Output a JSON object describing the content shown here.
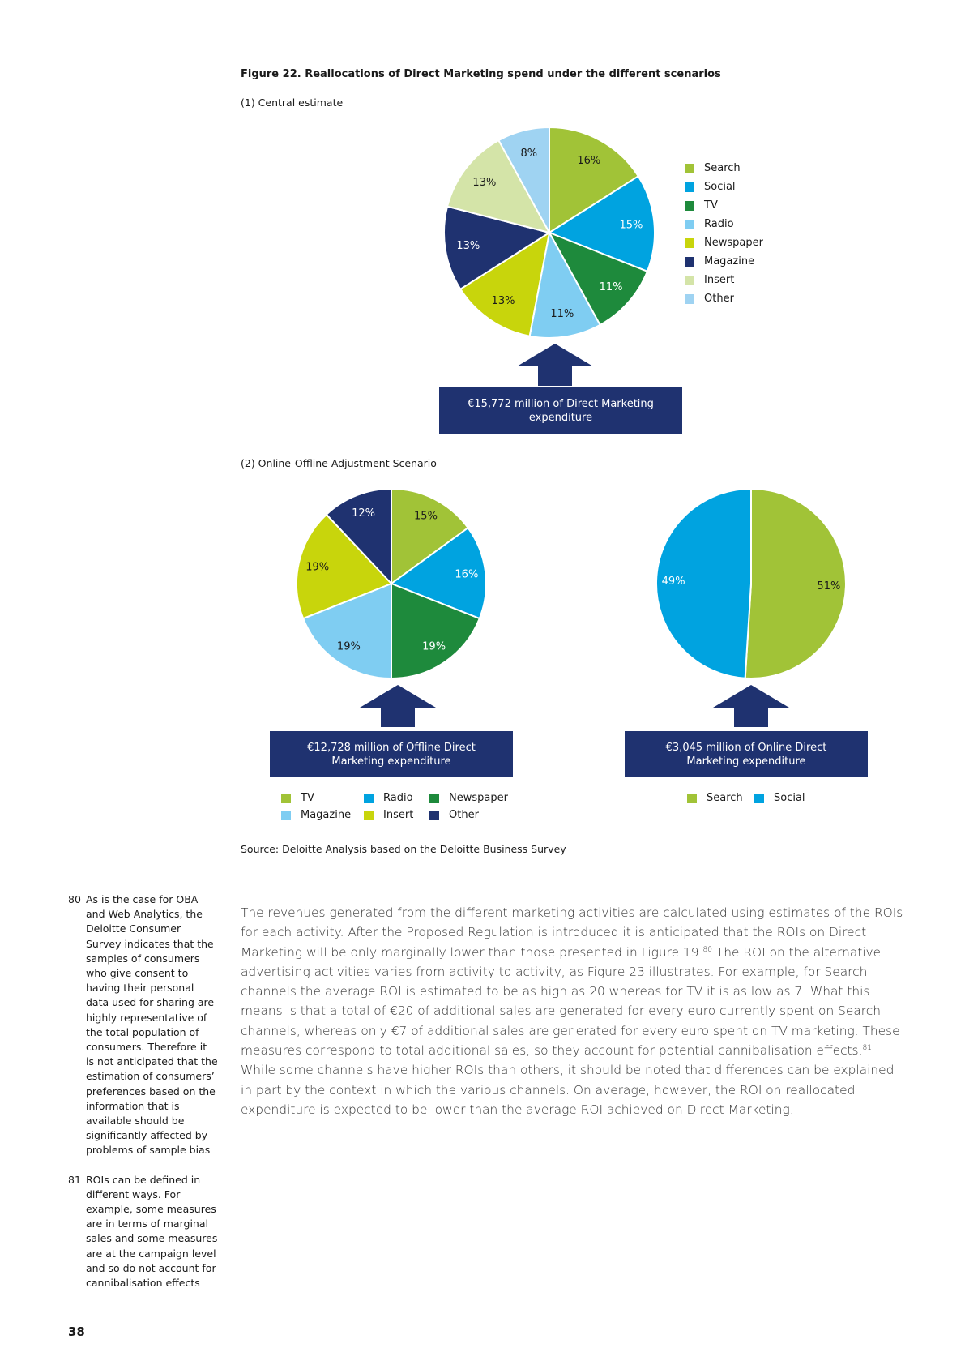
{
  "figure": {
    "title": "Figure 22. Reallocations of Direct Marketing spend under the different scenarios",
    "subtitle_1": "(1) Central estimate",
    "subtitle_2": "(2) Online-Offline Adjustment Scenario",
    "source": "Source: Deloitte Analysis based on the Deloitte Business Survey"
  },
  "colors": {
    "Search": "#a1c337",
    "Social": "#00a3e0",
    "TV": "#1e8a3c",
    "Radio": "#7fcdf2",
    "Newspaper": "#c8d50c",
    "Magazine": "#1f3270",
    "Insert": "#d4e4a8",
    "Other": "#9fd3f2",
    "Other_dark": "#1f3270",
    "callout_bg": "#1f3270"
  },
  "chart_data": [
    {
      "type": "pie",
      "labels": [
        "Search",
        "Social",
        "TV",
        "Radio",
        "Newspaper",
        "Magazine",
        "Insert",
        "Other"
      ],
      "values": [
        16,
        15,
        11,
        11,
        13,
        13,
        13,
        8
      ],
      "value_labels": [
        "16%",
        "15%",
        "11%",
        "11%",
        "13%",
        "13%",
        "13%",
        "8%"
      ],
      "callout": "€15,772 million of Direct Marketing expenditure",
      "legend": [
        "Search",
        "Social",
        "TV",
        "Radio",
        "Newspaper",
        "Magazine",
        "Insert",
        "Other"
      ],
      "legend_placement": "right"
    },
    {
      "type": "pie",
      "labels": [
        "TV",
        "Radio",
        "Newspaper",
        "Magazine",
        "Insert",
        "Other"
      ],
      "values": [
        15,
        16,
        19,
        19,
        19,
        12
      ],
      "value_labels": [
        "15%",
        "16%",
        "19%",
        "19%",
        "19%",
        "12%"
      ],
      "callout": "€12,728 million of Offline Direct Marketing expenditure",
      "legend": [
        "TV",
        "Radio",
        "Newspaper",
        "Magazine",
        "Insert",
        "Other"
      ],
      "legend_placement": "bottom"
    },
    {
      "type": "pie",
      "labels": [
        "Search",
        "Social"
      ],
      "values": [
        51,
        49
      ],
      "value_labels": [
        "51%",
        "49%"
      ],
      "callout": "€3,045 million of Online Direct Marketing expenditure",
      "legend": [
        "Search",
        "Social"
      ],
      "legend_placement": "bottom"
    }
  ],
  "footnotes": [
    {
      "num": "80",
      "text": "As is the case for OBA and Web Analytics, the Deloitte Consumer Survey indicates that the samples of consumers who give consent to having their personal data used for sharing are highly representative of the total population of consumers. Therefore it is not anticipated that the estimation of consumers’ preferences based on the information that is available should be significantly affected by problems of sample bias"
    },
    {
      "num": "81",
      "text": "ROIs can be defined in different ways. For example, some measures are in terms of marginal sales and some measures are at the campaign level and so do not account for cannibalisation effects"
    }
  ],
  "body": {
    "part1": "The revenues generated from the different marketing activities are calculated using estimates of the ROIs for each activity. After the Proposed Regulation is introduced it is anticipated that the ROIs on Direct Marketing will be only marginally lower than those presented in Figure 19.",
    "ref1": "80",
    "part2": " The ROI on the alternative advertising activities varies from activity to activity, as Figure 23 illustrates. For example, for Search channels the average ROI is estimated to be as high as 20 whereas for TV it is as low as 7. What this means is that a total of €20 of additional sales are generated for every euro currently spent on Search channels, whereas only €7 of additional sales are generated for every euro spent on TV marketing. These measures correspond to total additional sales, so they account for potential cannibalisation effects.",
    "ref2": "81",
    "part3": " While some channels have higher ROIs than others, it should be noted that differences can be explained in part by the context in which the various channels. On average, however, the ROI on reallocated expenditure is expected to be lower than the average ROI achieved on Direct Marketing."
  },
  "page_number": "38"
}
